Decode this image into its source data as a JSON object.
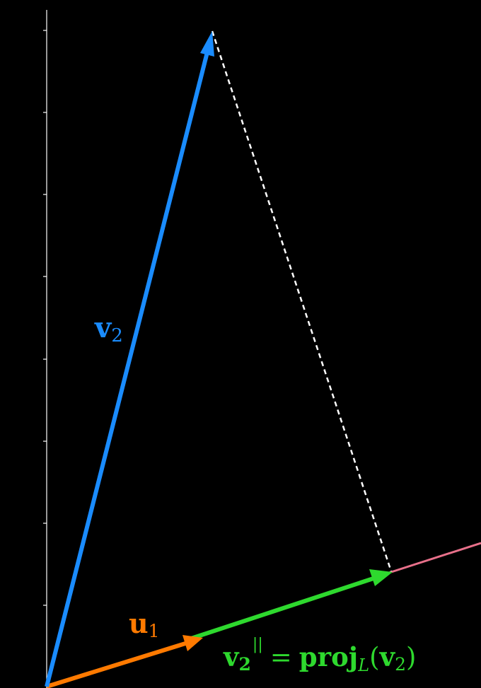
{
  "colors": {
    "background": "#000000",
    "axis": "#ffffff",
    "v2": "#1a8cff",
    "u1": "#ff7a00",
    "projection": "#2ed92e",
    "line_L": "#e8708a",
    "dashed": "#ffffff"
  },
  "labels": {
    "v2": {
      "main": "v",
      "sub": "2"
    },
    "u1": {
      "main": "u",
      "sub": "1"
    },
    "projection": {
      "lhs_main": "v",
      "lhs_sub": "2",
      "lhs_sup": "||",
      "equals": "=",
      "func": "proj",
      "func_sub": "L",
      "paren_open": "(",
      "arg_main": "v",
      "arg_sub": "2",
      "paren_close": ")"
    }
  }
}
